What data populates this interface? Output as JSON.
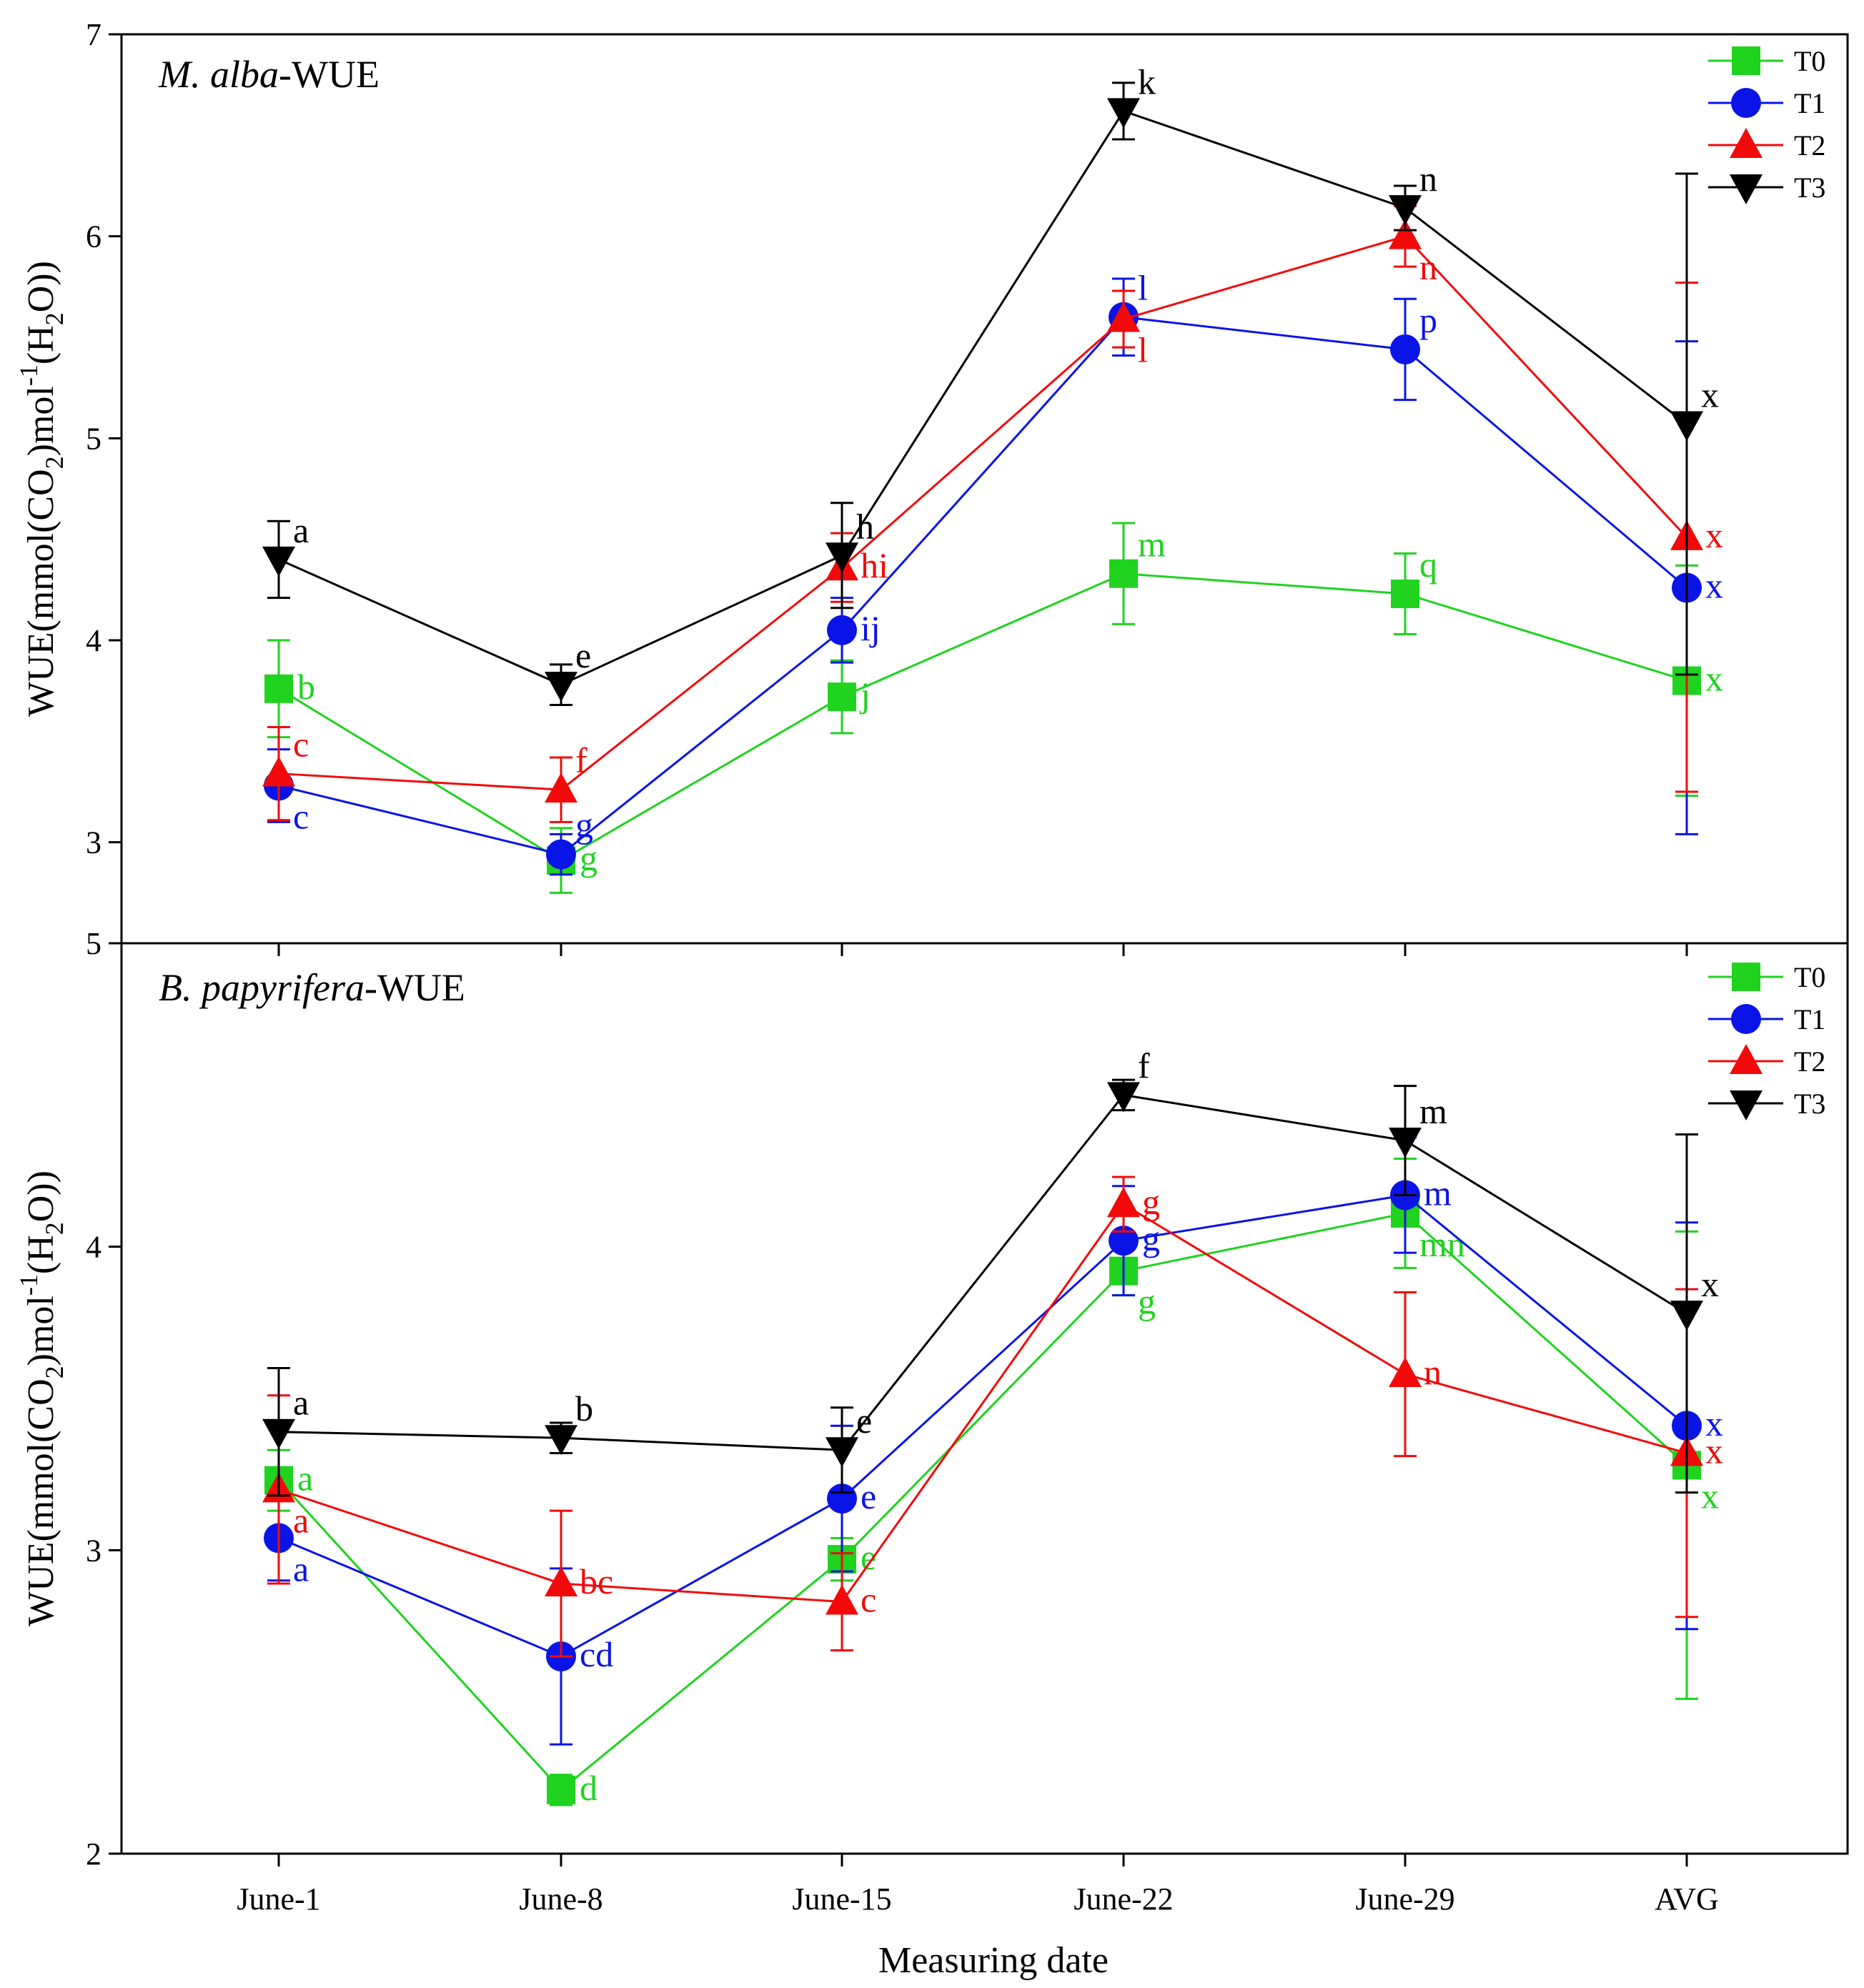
{
  "xlabel": "Measuring date",
  "categories": [
    "June-1",
    "June-8",
    "June-15",
    "June-22",
    "June-29",
    "AVG"
  ],
  "colors": {
    "T0": "#1fd31f",
    "T1": "#0a14e6",
    "T2": "#f20a0a",
    "T3": "#000000"
  },
  "markers": {
    "T0": "square",
    "T1": "circle",
    "T2": "triangle-up",
    "T3": "triangle-down"
  },
  "chart_data": [
    {
      "type": "line",
      "title_italic": "M. alba",
      "title_suffix": "-WUE",
      "ylabel_parts": [
        "WUE(mmol(CO",
        "2",
        ")mol",
        "-1",
        "(H",
        "2",
        "O))"
      ],
      "ylim": [
        2.5,
        7
      ],
      "yticks": [
        3,
        4,
        5,
        6,
        7
      ],
      "bottom_tick_label": "5",
      "legend": [
        "T0",
        "T1",
        "T2",
        "T3"
      ],
      "legend_position": "top-right",
      "series": [
        {
          "name": "T0",
          "values": [
            3.76,
            2.91,
            3.72,
            4.33,
            4.23,
            3.8
          ],
          "errors": [
            0.24,
            0.16,
            0.18,
            0.25,
            0.2,
            0.57
          ],
          "labels": [
            "b",
            "g",
            "j",
            "m",
            "q",
            "x"
          ],
          "label_side": [
            "right",
            "right",
            "right",
            "above",
            "above",
            "right"
          ]
        },
        {
          "name": "T1",
          "values": [
            3.28,
            2.94,
            4.05,
            5.6,
            5.44,
            4.26
          ],
          "errors": [
            0.18,
            0.1,
            0.16,
            0.19,
            0.25,
            1.22
          ],
          "labels": [
            "c",
            "g",
            "ij",
            "l",
            "p",
            "x"
          ],
          "label_side": [
            "below",
            "above",
            "right",
            "above",
            "above",
            "right"
          ]
        },
        {
          "name": "T2",
          "values": [
            3.34,
            3.26,
            4.36,
            5.59,
            6.0,
            4.51
          ],
          "errors": [
            0.23,
            0.16,
            0.17,
            0.14,
            0.15,
            1.26
          ],
          "labels": [
            "c",
            "f",
            "hi",
            "l",
            "n",
            "x"
          ],
          "label_side": [
            "above",
            "above",
            "right",
            "below",
            "below",
            "right"
          ]
        },
        {
          "name": "T3",
          "values": [
            4.4,
            3.78,
            4.42,
            6.62,
            6.14,
            5.07
          ],
          "errors": [
            0.19,
            0.1,
            0.26,
            0.14,
            0.11,
            1.24
          ],
          "labels": [
            "a",
            "e",
            "h",
            "k",
            "n",
            "x"
          ],
          "label_side": [
            "above",
            "above",
            "above",
            "above",
            "above",
            "above"
          ]
        }
      ]
    },
    {
      "type": "line",
      "title_italic": "B. papyrifera",
      "title_suffix": "-WUE",
      "ylabel_parts": [
        "WUE(mmol(CO",
        "2",
        ")mol",
        "-1",
        "(H",
        "2",
        "O))"
      ],
      "ylim": [
        2,
        5
      ],
      "yticks": [
        2,
        3,
        4
      ],
      "legend": [
        "T0",
        "T1",
        "T2",
        "T3"
      ],
      "legend_position": "top-right",
      "series": [
        {
          "name": "T0",
          "values": [
            3.23,
            2.21,
            2.97,
            3.92,
            4.11,
            3.28
          ],
          "errors": [
            0.1,
            0.05,
            0.07,
            0.08,
            0.18,
            0.77
          ],
          "labels": [
            "a",
            "d",
            "e",
            "g",
            "mn",
            "x"
          ],
          "label_side": [
            "right",
            "right",
            "right",
            "below",
            "below",
            "below"
          ]
        },
        {
          "name": "T1",
          "values": [
            3.04,
            2.65,
            3.17,
            4.02,
            4.17,
            3.41
          ],
          "errors": [
            0.14,
            0.29,
            0.24,
            0.18,
            0.19,
            0.67
          ],
          "labels": [
            "a",
            "cd",
            "e",
            "g",
            "m",
            "x"
          ],
          "label_side": [
            "below",
            "right",
            "right",
            "right",
            "right",
            "right"
          ]
        },
        {
          "name": "T2",
          "values": [
            3.2,
            2.89,
            2.83,
            4.14,
            3.58,
            3.32
          ],
          "errors": [
            0.31,
            0.24,
            0.16,
            0.09,
            0.27,
            0.54
          ],
          "labels": [
            "a",
            "bc",
            "c",
            "g",
            "n",
            "x"
          ],
          "label_side": [
            "below",
            "right",
            "right",
            "right",
            "right",
            "right"
          ]
        },
        {
          "name": "T3",
          "values": [
            3.39,
            3.37,
            3.33,
            4.5,
            4.35,
            3.78
          ],
          "errors": [
            0.21,
            0.05,
            0.14,
            0.05,
            0.18,
            0.59
          ],
          "labels": [
            "a",
            "b",
            "e",
            "f",
            "m",
            "x"
          ],
          "label_side": [
            "above",
            "above",
            "above",
            "above",
            "above",
            "above"
          ]
        }
      ]
    }
  ]
}
